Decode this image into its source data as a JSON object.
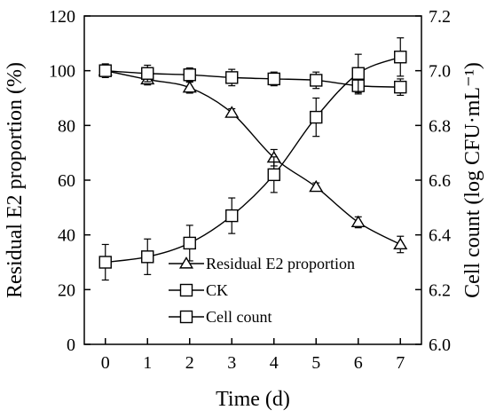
{
  "chart_data": {
    "type": "line",
    "xlabel": "Time (d)",
    "ylabel_left": "Residual E2 proportion (%)",
    "ylabel_right": "Cell count (log CFU·mL⁻¹)",
    "x": [
      0,
      1,
      2,
      3,
      4,
      5,
      6,
      7
    ],
    "xlim": [
      -0.5,
      7.5
    ],
    "ylim_left": [
      0,
      120
    ],
    "ylim_right": [
      6.0,
      7.2
    ],
    "yticks_left": [
      "0",
      "20",
      "40",
      "60",
      "80",
      "100",
      "120"
    ],
    "yticks_right": [
      "6.0",
      "6.2",
      "6.4",
      "6.6",
      "6.8",
      "7.0",
      "7.2"
    ],
    "xticks": [
      "0",
      "1",
      "2",
      "3",
      "4",
      "5",
      "6",
      "7"
    ],
    "legend_position": "bottom-center",
    "series": [
      {
        "name": "Residual E2 proportion",
        "axis": "left",
        "marker": "triangle",
        "values": [
          100,
          96.8,
          93.8,
          84.6,
          68.2,
          57.5,
          44.6,
          36.5
        ],
        "errors": [
          2,
          2,
          2,
          1.5,
          3,
          1.5,
          2,
          3
        ]
      },
      {
        "name": "CK",
        "axis": "left",
        "marker": "square",
        "values": [
          100,
          99,
          98.5,
          97.5,
          97,
          96.5,
          94.5,
          94
        ],
        "errors": [
          2.5,
          3,
          2.5,
          3,
          2.5,
          3,
          3,
          3
        ]
      },
      {
        "name": "Cell count",
        "axis": "right",
        "marker": "square",
        "values": [
          6.3,
          6.32,
          6.37,
          6.47,
          6.62,
          6.83,
          6.99,
          7.05
        ],
        "errors": [
          0.065,
          0.065,
          0.065,
          0.065,
          0.065,
          0.07,
          0.07,
          0.07
        ]
      }
    ]
  }
}
